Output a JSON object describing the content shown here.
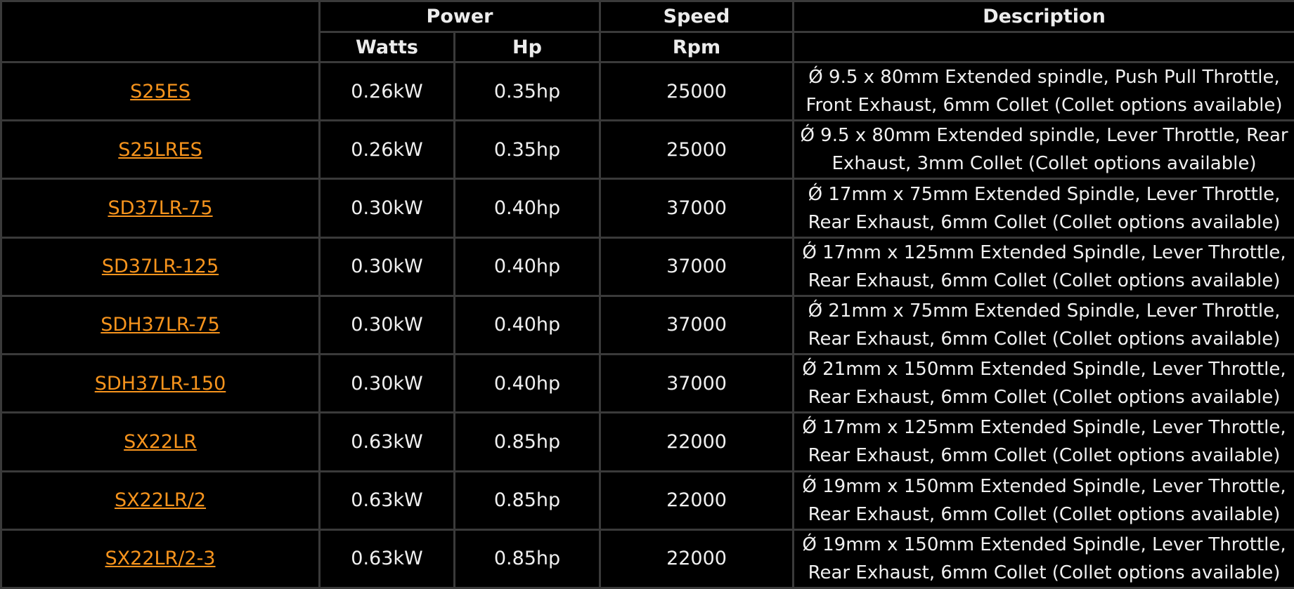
{
  "header": {
    "power": "Power",
    "speed": "Speed",
    "description": "Description",
    "watts": "Watts",
    "hp": "Hp",
    "rpm": "Rpm"
  },
  "colors": {
    "background": "#000000",
    "link": "#f7941d",
    "grid": "#3a3a3a",
    "text": "#f0f0f0"
  },
  "rows": [
    {
      "model": "S25ES",
      "watts": "0.26kW",
      "hp": "0.35hp",
      "rpm": "25000",
      "description": "Ǿ 9.5 x 80mm Extended spindle, Push Pull Throttle, Front Exhaust, 6mm Collet (Collet options available)"
    },
    {
      "model": "S25LRES",
      "watts": "0.26kW",
      "hp": "0.35hp",
      "rpm": "25000",
      "description": "Ǿ 9.5 x 80mm Extended spindle, Lever Throttle, Rear Exhaust, 3mm Collet (Collet options available)"
    },
    {
      "model": "SD37LR-75",
      "watts": "0.30kW",
      "hp": "0.40hp",
      "rpm": "37000",
      "description": "Ǿ 17mm x 75mm Extended Spindle, Lever Throttle, Rear Exhaust, 6mm Collet (Collet options available)"
    },
    {
      "model": "SD37LR-125",
      "watts": "0.30kW",
      "hp": "0.40hp",
      "rpm": "37000",
      "description": "Ǿ 17mm x 125mm Extended Spindle, Lever Throttle, Rear Exhaust, 6mm Collet (Collet options available)"
    },
    {
      "model": "SDH37LR-75",
      "watts": "0.30kW",
      "hp": "0.40hp",
      "rpm": "37000",
      "description": "Ǿ 21mm x 75mm Extended Spindle, Lever Throttle, Rear Exhaust, 6mm Collet (Collet options available)"
    },
    {
      "model": "SDH37LR-150",
      "watts": "0.30kW",
      "hp": "0.40hp",
      "rpm": "37000",
      "description": "Ǿ 21mm x 150mm Extended Spindle, Lever Throttle, Rear Exhaust, 6mm Collet (Collet options available)"
    },
    {
      "model": "SX22LR",
      "watts": "0.63kW",
      "hp": "0.85hp",
      "rpm": "22000",
      "description": "Ǿ 17mm x 125mm Extended Spindle, Lever Throttle, Rear Exhaust, 6mm Collet (Collet options available)"
    },
    {
      "model": "SX22LR/2",
      "watts": "0.63kW",
      "hp": "0.85hp",
      "rpm": "22000",
      "description": "Ǿ 19mm x 150mm Extended Spindle, Lever Throttle, Rear Exhaust, 6mm Collet (Collet options available)"
    },
    {
      "model": "SX22LR/2-3",
      "watts": "0.63kW",
      "hp": "0.85hp",
      "rpm": "22000",
      "description": "Ǿ 19mm x 150mm Extended Spindle, Lever Throttle, Rear Exhaust, 6mm Collet (Collet options available)"
    }
  ]
}
